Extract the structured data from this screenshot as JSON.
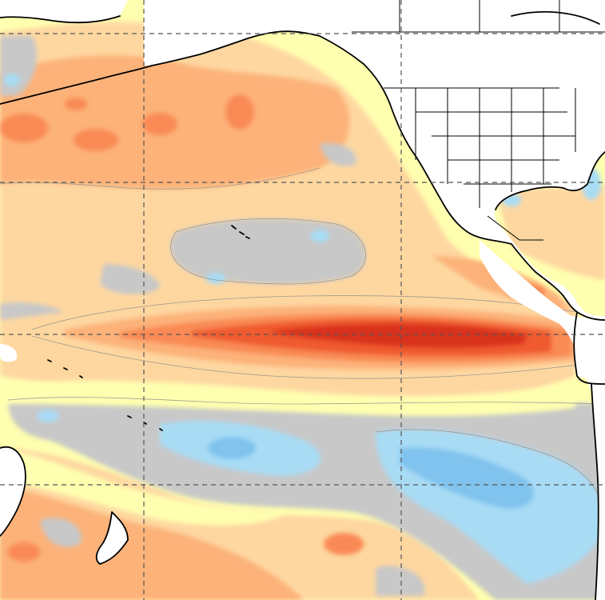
{
  "map": {
    "kind": "sea-surface-temperature-anomaly",
    "region": "Pacific Ocean",
    "palette": {
      "land": "#ffffff",
      "neutral": "#c8c8c8",
      "weak_warm": "#ffffb0",
      "warm": "#fed7a0",
      "moderate_warm": "#fcb279",
      "strong_warm": "#f98a54",
      "very_strong_warm": "#ef5a2e",
      "extreme_warm": "#d8311c",
      "weak_cool": "#a8dcf5",
      "moderate_cool": "#7fc3ee",
      "grid_line": "#555555",
      "coastline": "#000000"
    },
    "grid": "dashed",
    "legend": "none"
  }
}
